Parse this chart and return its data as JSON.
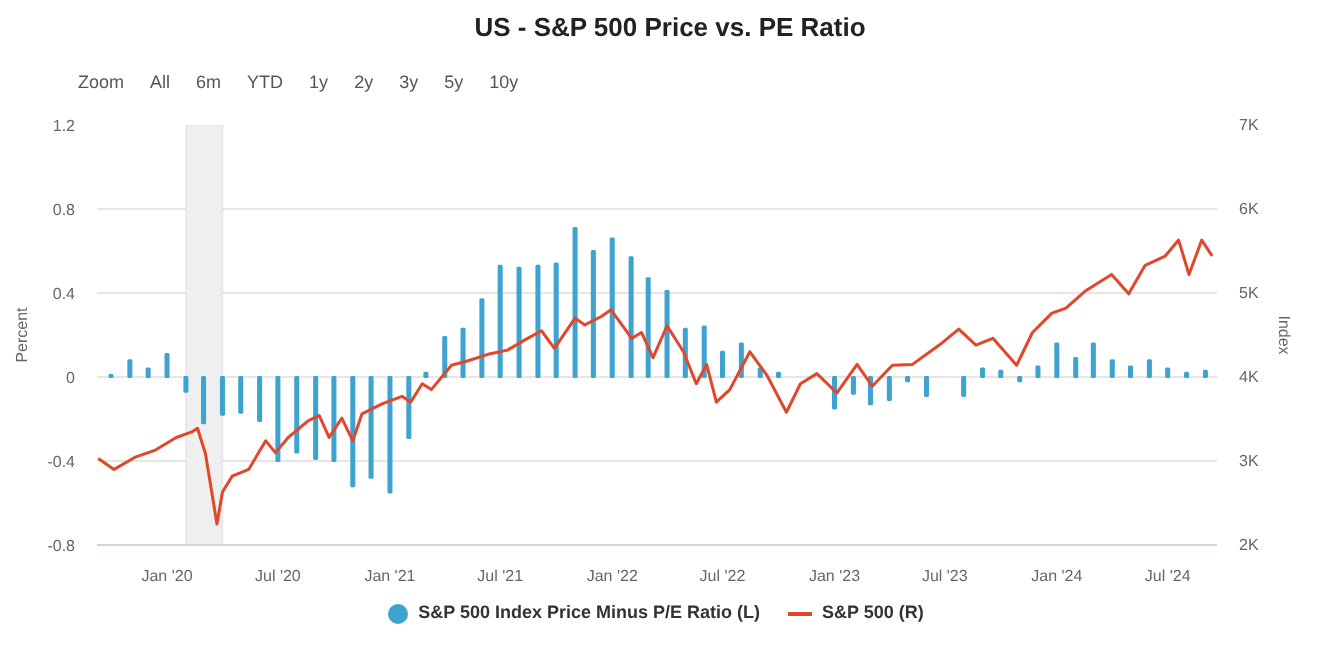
{
  "chart_data": {
    "type": "bar",
    "title": "US - S&P 500 Price vs. PE Ratio",
    "annotations": [
      "Zoom",
      "All",
      "6m",
      "YTD",
      "1y",
      "2y",
      "3y",
      "5y",
      "10y"
    ],
    "ylabel": "Percent",
    "y2label": "Index",
    "xlim": [
      "2019-09-08",
      "2024-09-20"
    ],
    "xticks": [
      {
        "value": "2020-01-01",
        "label": "Jan '20"
      },
      {
        "value": "2020-07-01",
        "label": "Jul '20"
      },
      {
        "value": "2021-01-01",
        "label": "Jan '21"
      },
      {
        "value": "2021-07-01",
        "label": "Jul '21"
      },
      {
        "value": "2022-01-01",
        "label": "Jan '22"
      },
      {
        "value": "2022-07-01",
        "label": "Jul '22"
      },
      {
        "value": "2023-01-01",
        "label": "Jan '23"
      },
      {
        "value": "2023-07-01",
        "label": "Jul '23"
      },
      {
        "value": "2024-01-01",
        "label": "Jan '24"
      },
      {
        "value": "2024-07-01",
        "label": "Jul '24"
      }
    ],
    "ylim": [
      -0.8,
      1.2
    ],
    "yticks": [
      -0.8,
      -0.4,
      0,
      0.4,
      0.8,
      1.2
    ],
    "y2lim": [
      2000,
      7000
    ],
    "y2ticks": [
      {
        "value": 2000,
        "label": "2K"
      },
      {
        "value": 3000,
        "label": "3K"
      },
      {
        "value": 4000,
        "label": "4K"
      },
      {
        "value": 5000,
        "label": "5K"
      },
      {
        "value": 6000,
        "label": "6K"
      },
      {
        "value": 7000,
        "label": "7K"
      }
    ],
    "grid": "y",
    "legend": "bottom",
    "bands": [
      {
        "axis": "x",
        "from": "2020-02-01",
        "to": "2020-04-01",
        "color": "#efefef"
      }
    ],
    "series": [
      {
        "name": "S&P 500 Index Price Minus P/E Ratio (L)",
        "color": "#3fa3d0",
        "x": [
          "2019-10-01",
          "2019-11-01",
          "2019-12-01",
          "2020-01-01",
          "2020-02-01",
          "2020-03-01",
          "2020-04-01",
          "2020-05-01",
          "2020-06-01",
          "2020-07-01",
          "2020-08-01",
          "2020-09-01",
          "2020-10-01",
          "2020-11-01",
          "2020-12-01",
          "2021-01-01",
          "2021-02-01",
          "2021-03-01",
          "2021-04-01",
          "2021-05-01",
          "2021-06-01",
          "2021-07-01",
          "2021-08-01",
          "2021-09-01",
          "2021-10-01",
          "2021-11-01",
          "2021-12-01",
          "2022-01-01",
          "2022-02-01",
          "2022-03-01",
          "2022-04-01",
          "2022-05-01",
          "2022-06-01",
          "2022-07-01",
          "2022-08-01",
          "2022-09-01",
          "2022-10-01",
          "2022-11-01",
          "2022-12-01",
          "2023-01-01",
          "2023-02-01",
          "2023-03-01",
          "2023-04-01",
          "2023-05-01",
          "2023-06-01",
          "2023-07-01",
          "2023-08-01",
          "2023-09-01",
          "2023-10-01",
          "2023-11-01",
          "2023-12-01",
          "2024-01-01",
          "2024-02-01",
          "2024-03-01",
          "2024-04-01",
          "2024-05-01",
          "2024-06-01",
          "2024-07-01",
          "2024-08-01",
          "2024-09-01"
        ],
        "values": [
          0.01,
          0.08,
          0.04,
          0.11,
          -0.07,
          -0.22,
          -0.18,
          -0.17,
          -0.21,
          -0.4,
          -0.36,
          -0.39,
          -0.4,
          -0.52,
          -0.48,
          -0.55,
          -0.29,
          0.02,
          0.19,
          0.23,
          0.37,
          0.53,
          0.52,
          0.53,
          0.54,
          0.71,
          0.6,
          0.66,
          0.57,
          0.47,
          0.41,
          0.23,
          0.24,
          0.12,
          0.16,
          0.04,
          0.02,
          null,
          null,
          -0.15,
          -0.08,
          -0.13,
          -0.11,
          -0.02,
          -0.09,
          null,
          -0.09,
          0.04,
          0.03,
          -0.02,
          0.05,
          0.16,
          0.09,
          0.16,
          0.08,
          0.05,
          0.08,
          0.04,
          0.02,
          0.03
        ]
      },
      {
        "name": "S&P 500 (R)",
        "type": "line",
        "axis": "y2",
        "color": "#e0472b",
        "x": [
          "2019-09-10",
          "2019-10-06",
          "2019-11-11",
          "2019-12-13",
          "2020-01-16",
          "2020-02-12",
          "2020-02-20",
          "2020-03-04",
          "2020-03-23",
          "2020-04-01",
          "2020-04-17",
          "2020-05-14",
          "2020-06-11",
          "2020-06-27",
          "2020-07-18",
          "2020-08-20",
          "2020-09-07",
          "2020-09-23",
          "2020-10-14",
          "2020-11-01",
          "2020-11-16",
          "2020-12-19",
          "2021-01-21",
          "2021-02-04",
          "2021-02-23",
          "2021-03-10",
          "2021-04-12",
          "2021-05-08",
          "2021-06-11",
          "2021-07-13",
          "2021-08-15",
          "2021-09-07",
          "2021-09-28",
          "2021-11-01",
          "2021-11-17",
          "2021-12-14",
          "2021-12-30",
          "2022-02-02",
          "2022-02-18",
          "2022-03-09",
          "2022-04-01",
          "2022-04-28",
          "2022-05-19",
          "2022-06-05",
          "2022-06-21",
          "2022-07-13",
          "2022-08-15",
          "2022-09-12",
          "2022-10-14",
          "2022-11-06",
          "2022-12-03",
          "2023-01-05",
          "2023-02-07",
          "2023-03-04",
          "2023-04-06",
          "2023-05-09",
          "2023-06-22",
          "2023-07-24",
          "2023-08-21",
          "2023-09-18",
          "2023-10-27",
          "2023-11-22",
          "2023-12-24",
          "2024-01-16",
          "2024-02-18",
          "2024-03-31",
          "2024-04-28",
          "2024-05-25",
          "2024-06-27",
          "2024-07-19",
          "2024-08-05",
          "2024-08-26",
          "2024-09-12"
        ],
        "values": [
          3030,
          2900,
          3050,
          3130,
          3280,
          3350,
          3390,
          3090,
          2250,
          2630,
          2820,
          2900,
          3240,
          3100,
          3280,
          3480,
          3540,
          3280,
          3510,
          3240,
          3560,
          3680,
          3770,
          3700,
          3920,
          3850,
          4140,
          4190,
          4270,
          4320,
          4460,
          4550,
          4340,
          4700,
          4620,
          4720,
          4800,
          4460,
          4530,
          4230,
          4610,
          4300,
          3920,
          4150,
          3700,
          3850,
          4300,
          4020,
          3580,
          3920,
          4040,
          3810,
          4150,
          3890,
          4140,
          4150,
          4380,
          4570,
          4380,
          4460,
          4140,
          4530,
          4760,
          4820,
          5030,
          5220,
          4990,
          5330,
          5440,
          5630,
          5220,
          5630,
          5440
        ]
      }
    ]
  }
}
